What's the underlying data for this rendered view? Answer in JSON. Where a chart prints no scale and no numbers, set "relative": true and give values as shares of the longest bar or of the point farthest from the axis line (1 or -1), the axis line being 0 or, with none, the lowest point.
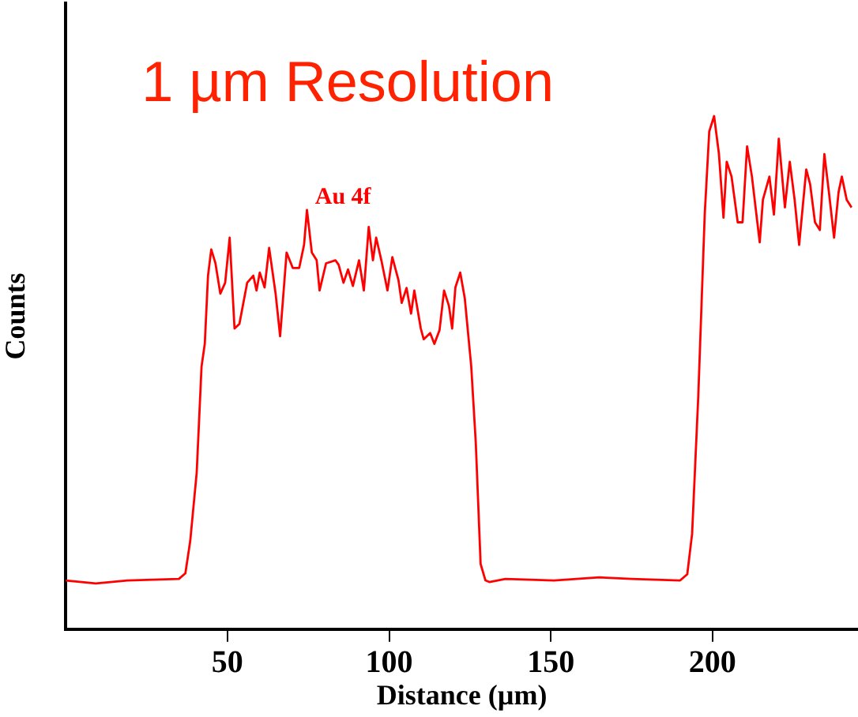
{
  "chart_data": {
    "type": "line",
    "title": "1 µm Resolution",
    "xlabel": "Distance (µm)",
    "ylabel": "Counts",
    "relative": true,
    "grid": false,
    "legend": false,
    "marker": "none",
    "line_style": "solid",
    "xlim": [
      0,
      245
    ],
    "xticks": [
      50,
      100,
      150,
      200
    ],
    "annotations": [
      "Au 4f"
    ],
    "series": [
      {
        "color": "#ff0000",
        "x": [
          0,
          9.3,
          19,
          35,
          37,
          38.5,
          40.5,
          42,
          43,
          44,
          45,
          46.3,
          47.8,
          49.3,
          50.7,
          52.2,
          53.7,
          56.1,
          58,
          59,
          60,
          61.5,
          62.9,
          64.9,
          66.3,
          68.3,
          70.2,
          72.2,
          73.7,
          74.6,
          76.1,
          77.6,
          78.5,
          80.5,
          83.4,
          84.4,
          85.9,
          87.3,
          88.8,
          90.7,
          92.2,
          93.7,
          95,
          96,
          97.6,
          99.5,
          101,
          102.9,
          103.9,
          105.4,
          106.8,
          107.8,
          109.8,
          110.7,
          112.7,
          114,
          115.6,
          117,
          118.5,
          119.5,
          120.5,
          122,
          123.4,
          125.4,
          126.8,
          128.3,
          129.8,
          131,
          136,
          151,
          165,
          175,
          190,
          192.2,
          193.7,
          195.6,
          197.6,
          199,
          200.5,
          202,
          203.4,
          204.4,
          205.9,
          207.8,
          209.3,
          210.7,
          212.2,
          214.6,
          215.6,
          217.6,
          219,
          220.5,
          222.4,
          223.9,
          225.4,
          226.8,
          229,
          230.2,
          231.7,
          233.2,
          234.6,
          236,
          237.6,
          239,
          240,
          241.5,
          243
        ],
        "values": [
          0.095,
          0.089,
          0.095,
          0.098,
          0.109,
          0.172,
          0.305,
          0.512,
          0.556,
          0.689,
          0.74,
          0.713,
          0.654,
          0.675,
          0.763,
          0.586,
          0.595,
          0.675,
          0.689,
          0.66,
          0.695,
          0.666,
          0.743,
          0.654,
          0.571,
          0.734,
          0.704,
          0.704,
          0.749,
          0.817,
          0.734,
          0.719,
          0.66,
          0.713,
          0.719,
          0.71,
          0.675,
          0.701,
          0.669,
          0.719,
          0.66,
          0.784,
          0.719,
          0.763,
          0.719,
          0.66,
          0.725,
          0.68,
          0.636,
          0.665,
          0.615,
          0.66,
          0.586,
          0.565,
          0.577,
          0.556,
          0.583,
          0.66,
          0.63,
          0.586,
          0.666,
          0.695,
          0.645,
          0.512,
          0.364,
          0.127,
          0.095,
          0.092,
          0.098,
          0.095,
          0.101,
          0.098,
          0.095,
          0.107,
          0.186,
          0.453,
          0.808,
          0.97,
          1,
          0.926,
          0.802,
          0.911,
          0.882,
          0.793,
          0.793,
          0.941,
          0.882,
          0.754,
          0.837,
          0.882,
          0.808,
          0.956,
          0.822,
          0.911,
          0.837,
          0.749,
          0.896,
          0.867,
          0.793,
          0.778,
          0.926,
          0.852,
          0.763,
          0.852,
          0.882,
          0.837,
          0.822
        ]
      }
    ]
  }
}
